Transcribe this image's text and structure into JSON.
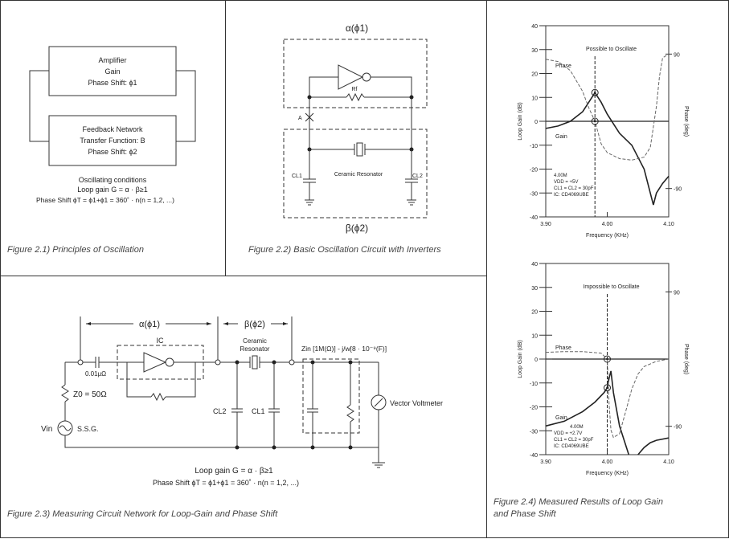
{
  "fig1": {
    "amplifier": [
      "Amplifier",
      "Gain",
      "Phase Shift: ϕ1"
    ],
    "feedback": [
      "Feedback Network",
      "Transfer Function: Β",
      "Phase Shift: ϕ2"
    ],
    "conditions": [
      "Oscillating conditions",
      "Loop gain G = α · β≥1",
      "Phase Shift ϕT = ϕ1+ϕ1 = 360˚ · n(n = 1,2, ...)"
    ],
    "caption": "Figure 2.1) Principles of Oscillation"
  },
  "fig2": {
    "alpha": "α(ϕ1)",
    "beta": "β(ϕ2)",
    "rf": "Rf",
    "node_a": "A",
    "resonator": "Ceramic Resonator",
    "cl1": "CL1",
    "cl2": "CL2",
    "caption": "Figure 2.2) Basic Oscillation Circuit with Inverters"
  },
  "fig3": {
    "alpha": "α(ϕ1)",
    "beta": "β(ϕ2)",
    "ic": "IC",
    "cap": "0.01μΩ",
    "z0": "Z0 = 50Ω",
    "vin": "Vin",
    "ssg": "S.S.G.",
    "resonator": [
      "Ceramic",
      "Resonator"
    ],
    "zin": "Zin [1M(Ω)] - j/w[8 · 10⁻⁹(F)]",
    "cl2": "CL2",
    "cl1": "CL1",
    "voltmeter": "Vector Voltmeter",
    "conditions": [
      "Loop gain G = α · β≥1",
      "Phase Shift ϕT = ϕ1+ϕ1 = 360˚ · n(n = 1,2, ...)"
    ],
    "caption": "Figure 2.3) Measuring Circuit Network for Loop-Gain and Phase Shift"
  },
  "fig4": {
    "caption": [
      "Figure 2.4) Measured Results of  Loop Gain",
      "and Phase Shift"
    ]
  },
  "chart_data": [
    {
      "type": "line",
      "title": "Possible to Oscillate",
      "xlabel": "Frequency (KHz)",
      "ylabel": "Loop Gain (dB)",
      "y2label": "Phase (deg)",
      "xlim": [
        3.9,
        4.1
      ],
      "ylim": [
        -40,
        40
      ],
      "y2lim": [
        -128,
        128
      ],
      "xticks": [
        "3.90",
        "4.00",
        "4.10"
      ],
      "yticks": [
        "40",
        "30",
        "20",
        "10",
        "0",
        "-10",
        "-20",
        "-30",
        "-40"
      ],
      "y2ticks": [
        "90",
        "-90"
      ],
      "marker_x": 3.98,
      "notes": [
        "4.00M",
        "VDD = +5V",
        "CL1 = CL2 = 30pF",
        "IC: CD4069UBE"
      ],
      "series": [
        {
          "name": "Gain",
          "axis": "left",
          "x": [
            3.9,
            3.92,
            3.94,
            3.96,
            3.975,
            3.98,
            3.99,
            4.0,
            4.02,
            4.04,
            4.06,
            4.075,
            4.08,
            4.09,
            4.1
          ],
          "y": [
            -3,
            -2,
            0,
            4,
            10,
            12,
            8,
            3,
            -5,
            -10,
            -20,
            -35,
            -30,
            -26,
            -23
          ]
        },
        {
          "name": "Phase",
          "axis": "right",
          "x": [
            3.9,
            3.92,
            3.94,
            3.96,
            3.97,
            3.98,
            3.99,
            4.0,
            4.02,
            4.04,
            4.06,
            4.07,
            4.08,
            4.085,
            4.09,
            4.1
          ],
          "y": [
            83,
            80,
            68,
            40,
            18,
            0,
            -30,
            -42,
            -50,
            -52,
            -48,
            -35,
            20,
            60,
            85,
            90
          ]
        }
      ]
    },
    {
      "type": "line",
      "title": "Impossible to Oscillate",
      "xlabel": "Frequency (KHz)",
      "ylabel": "Loop Gain (dB)",
      "y2label": "Phase (deg)",
      "xlim": [
        3.9,
        4.1
      ],
      "ylim": [
        -40,
        40
      ],
      "y2lim": [
        -128,
        128
      ],
      "xticks": [
        "3.90",
        "4.00",
        "4.10"
      ],
      "yticks": [
        "40",
        "30",
        "20",
        "10",
        "0",
        "-10",
        "-20",
        "-30",
        "-40"
      ],
      "y2ticks": [
        "90",
        "-90"
      ],
      "marker_x": 4.0,
      "notes": [
        "4.00M",
        "VDD = +2.7V",
        "CL1 = CL2 = 30pF",
        "IC: CD4069UBE"
      ],
      "series": [
        {
          "name": "Gain",
          "axis": "left",
          "x": [
            3.9,
            3.93,
            3.96,
            3.98,
            3.995,
            4.0,
            4.003,
            4.006,
            4.01,
            4.02,
            4.035
          ],
          "y": [
            -28,
            -26,
            -22,
            -18,
            -14,
            -12,
            -8,
            -5,
            -14,
            -28,
            -40
          ]
        },
        {
          "name": "Gain",
          "axis": "left",
          "x": [
            4.05,
            4.06,
            4.07,
            4.08,
            4.1
          ],
          "y": [
            -40,
            -37,
            -35,
            -34,
            -33
          ]
        },
        {
          "name": "Phase",
          "axis": "right",
          "x": [
            3.9,
            3.93,
            3.96,
            3.99,
            4.0,
            4.003,
            4.006,
            4.01,
            4.02,
            4.03,
            4.04,
            4.05,
            4.06,
            4.08,
            4.1
          ],
          "y": [
            9,
            10,
            10,
            8,
            0,
            -60,
            -95,
            -105,
            -100,
            -70,
            -40,
            -20,
            -10,
            -3,
            0
          ]
        }
      ]
    }
  ]
}
